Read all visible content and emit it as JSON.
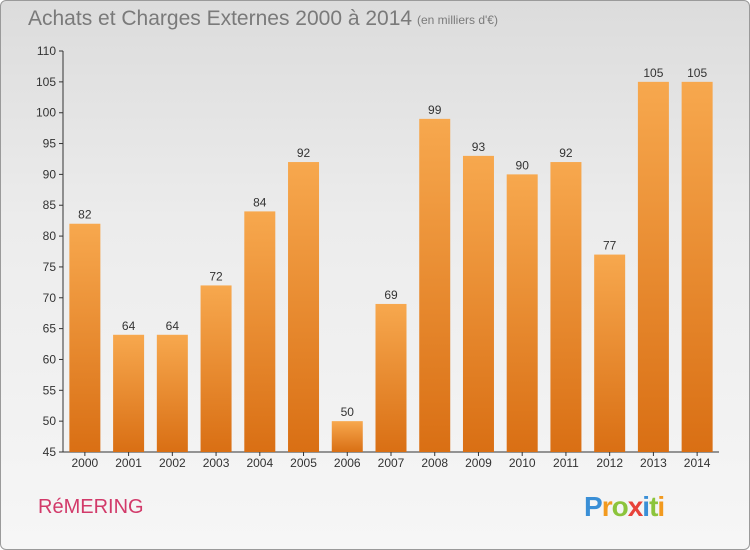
{
  "chart_data": {
    "type": "bar",
    "title": "Achats et Charges Externes 2000 à 2014",
    "subtitle": "(en milliers d'€)",
    "categories": [
      "2000",
      "2001",
      "2002",
      "2003",
      "2004",
      "2005",
      "2006",
      "2007",
      "2008",
      "2009",
      "2010",
      "2011",
      "2012",
      "2013",
      "2014"
    ],
    "values": [
      82,
      64,
      64,
      72,
      84,
      92,
      50,
      69,
      99,
      93,
      90,
      92,
      77,
      105,
      105
    ],
    "ylim": [
      45,
      110
    ],
    "yticks": [
      45,
      50,
      55,
      60,
      65,
      70,
      75,
      80,
      85,
      90,
      95,
      100,
      105,
      110
    ],
    "grid": false,
    "bar_color_top": "#f7a84e",
    "bar_color_bottom": "#d96f14"
  },
  "footer": {
    "commune": "RéMERING",
    "logo": "Proxiti",
    "logo_letters": [
      {
        "ch": "P",
        "color": "#3a8fd6"
      },
      {
        "ch": "r",
        "color": "#f29a1f"
      },
      {
        "ch": "o",
        "color": "#8cc43c"
      },
      {
        "ch": "x",
        "color": "#e8433a"
      },
      {
        "ch": "i",
        "color": "#3a8fd6"
      },
      {
        "ch": "t",
        "color": "#8cc43c"
      },
      {
        "ch": "i",
        "color": "#f29a1f"
      }
    ]
  }
}
